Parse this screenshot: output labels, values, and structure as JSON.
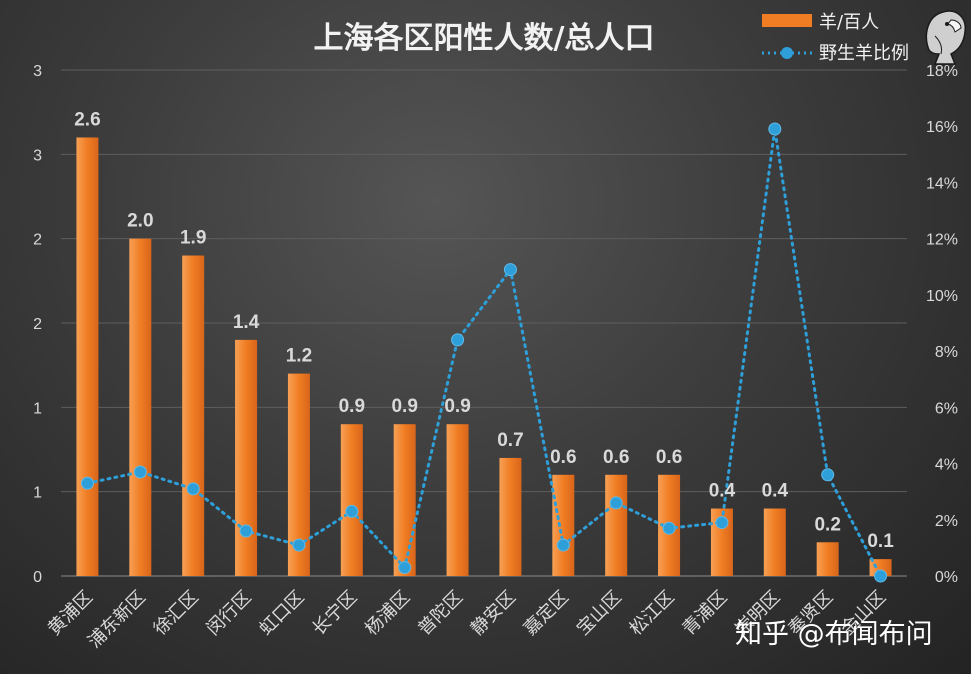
{
  "chart_data": {
    "type": "bar+line",
    "title": "上海各区阳性人数/总人口",
    "categories": [
      "黄浦区",
      "浦东新区",
      "徐汇区",
      "闵行区",
      "虹口区",
      "长宁区",
      "杨浦区",
      "普陀区",
      "静安区",
      "嘉定区",
      "宝山区",
      "松江区",
      "青浦区",
      "崇明区",
      "奉贤区",
      "金山区"
    ],
    "bar_series": {
      "name": "羊/百人",
      "values": [
        2.6,
        2.0,
        1.9,
        1.4,
        1.2,
        0.9,
        0.9,
        0.9,
        0.7,
        0.6,
        0.6,
        0.6,
        0.4,
        0.4,
        0.2,
        0.1
      ],
      "labels": [
        "2.6",
        "2.0",
        "1.9",
        "1.4",
        "1.2",
        "0.9",
        "0.9",
        "0.9",
        "0.7",
        "0.6",
        "0.6",
        "0.6",
        "0.4",
        "0.4",
        "0.2",
        "0.1"
      ],
      "color": "#f07d23"
    },
    "line_series": {
      "name": "野生羊比例",
      "values": [
        3.3,
        3.7,
        3.1,
        1.6,
        1.1,
        2.3,
        0.3,
        8.4,
        10.9,
        1.1,
        2.6,
        1.7,
        1.9,
        15.9,
        3.6,
        0.0
      ],
      "color": "#2e9fd8"
    },
    "y_left": {
      "ylim": [
        0,
        3
      ],
      "ticks": [
        "0",
        "1",
        "1",
        "2",
        "2",
        "3",
        "3"
      ]
    },
    "y_right": {
      "ylim": [
        0,
        18
      ],
      "ticks": [
        "0%",
        "2%",
        "4%",
        "6%",
        "8%",
        "10%",
        "12%",
        "14%",
        "16%",
        "18%"
      ]
    },
    "grid": true,
    "legend": "top-right"
  },
  "watermark": "知乎 @布闻布问",
  "logo": "eagle-logo"
}
